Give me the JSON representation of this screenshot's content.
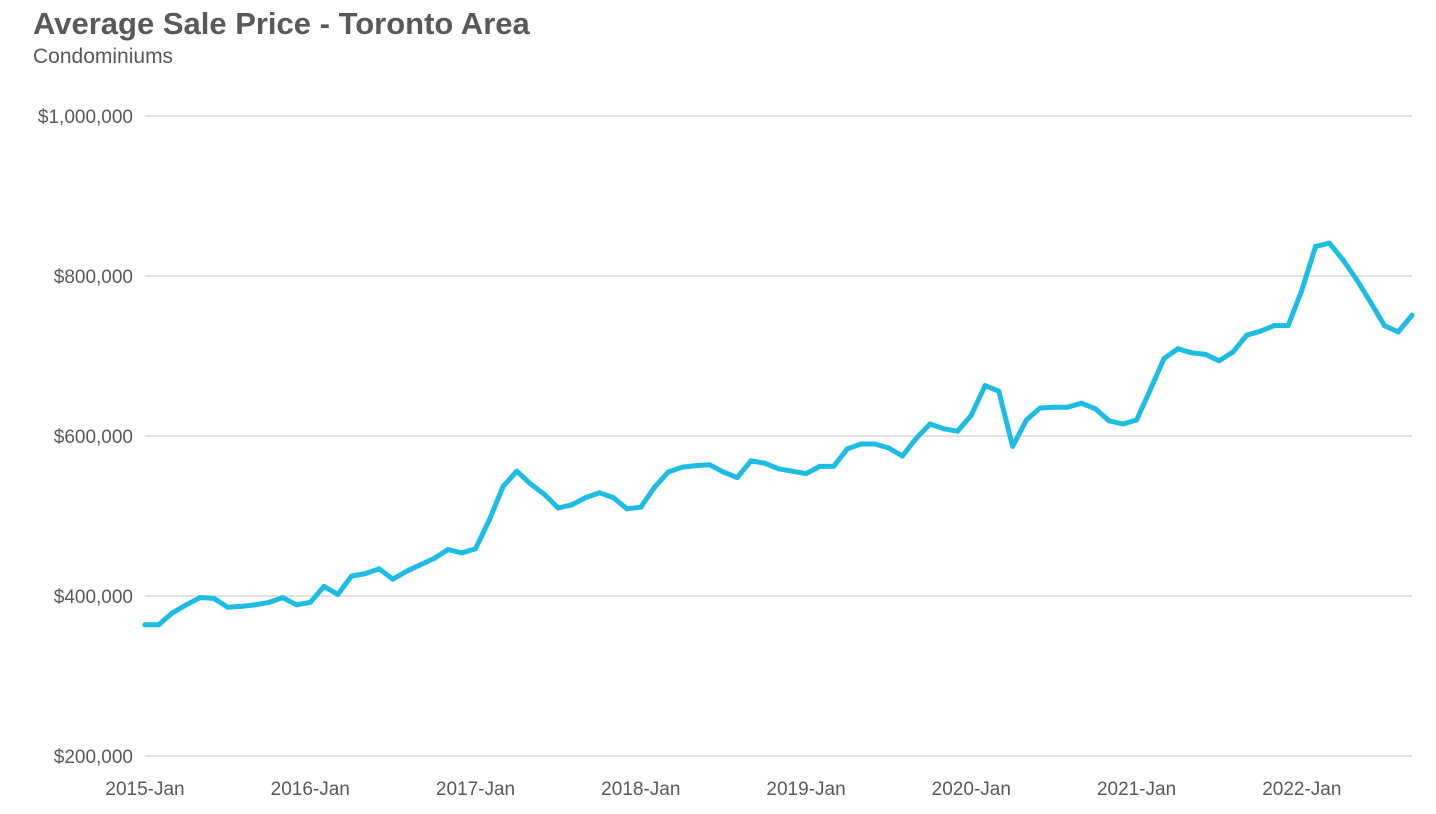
{
  "chart_data": {
    "type": "line",
    "title": "Average Sale Price - Toronto Area",
    "subtitle": "Condominiums",
    "xlabel": "",
    "ylabel": "",
    "ylim": [
      200000,
      1000000
    ],
    "y_ticks": [
      200000,
      400000,
      600000,
      800000,
      1000000
    ],
    "y_tick_labels": [
      "$200,000",
      "$400,000",
      "$600,000",
      "$800,000",
      "$1,000,000"
    ],
    "x_tick_labels": [
      "2015-Jan",
      "2016-Jan",
      "2017-Jan",
      "2018-Jan",
      "2019-Jan",
      "2020-Jan",
      "2021-Jan",
      "2022-Jan"
    ],
    "grid": true,
    "line_color": "#1DBDE3",
    "series": [
      {
        "values": [
          364000,
          364000,
          379000,
          389000,
          398000,
          397000,
          386000,
          387000,
          389000,
          392000,
          398000,
          389000,
          392000,
          412000,
          402000,
          425000,
          428000,
          434000,
          421000,
          431000,
          439000,
          447000,
          458000,
          454000,
          459000,
          495000,
          537000,
          556000,
          540000,
          527000,
          510000,
          514000,
          523000,
          529000,
          523000,
          509000,
          511000,
          536000,
          555000,
          561000,
          563000,
          564000,
          555000,
          548000,
          569000,
          566000,
          559000,
          556000,
          553000,
          562000,
          562000,
          584000,
          590000,
          590000,
          585000,
          575000,
          597000,
          615000,
          609000,
          606000,
          626000,
          663000,
          656000,
          587000,
          620000,
          635000,
          636000,
          636000,
          641000,
          634000,
          619000,
          615000,
          620000,
          658000,
          697000,
          709000,
          704000,
          702000,
          694000,
          705000,
          726000,
          731000,
          738000,
          738000,
          782000,
          837000,
          841000,
          820000,
          795000,
          767000,
          738000,
          730000,
          751000
        ]
      }
    ]
  }
}
